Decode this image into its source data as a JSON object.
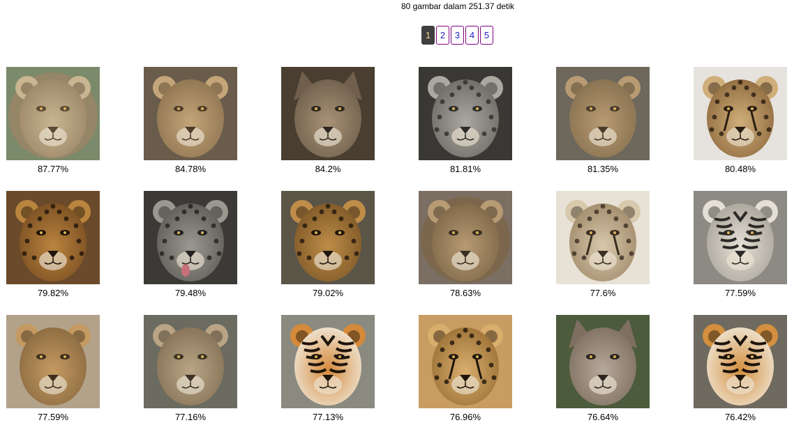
{
  "summary": {
    "text": "80 gambar dalam 251.37 detik"
  },
  "pagination": {
    "pages": [
      "1",
      "2",
      "3",
      "4",
      "5"
    ],
    "current": "1"
  },
  "results": [
    {
      "score": "87.77%",
      "icon": "lion-image",
      "palette": [
        "#c9b591",
        "#9a8566",
        "#5a4a36",
        "#7b8a6a"
      ]
    },
    {
      "score": "84.78%",
      "icon": "lioness-image",
      "palette": [
        "#c4a579",
        "#8e7451",
        "#4d3c29",
        "#6a5c4b"
      ]
    },
    {
      "score": "84.2%",
      "icon": "wolf-image",
      "palette": [
        "#a79276",
        "#6f5f4c",
        "#2f2820",
        "#4a3e30"
      ]
    },
    {
      "score": "81.81%",
      "icon": "snow-leopard-image",
      "palette": [
        "#aaa8a0",
        "#6c6a63",
        "#2e2d2a",
        "#3a3834"
      ]
    },
    {
      "score": "81.35%",
      "icon": "lioness-image",
      "palette": [
        "#b89b73",
        "#86704f",
        "#4a3c2b",
        "#6d675c"
      ]
    },
    {
      "score": "80.48%",
      "icon": "cheetah-image",
      "palette": [
        "#cfae7a",
        "#8f6a3e",
        "#2b1e12",
        "#e6e3de"
      ]
    },
    {
      "score": "79.82%",
      "icon": "jaguar-image",
      "palette": [
        "#b9843e",
        "#7a4e22",
        "#1e140a",
        "#6a4a2a"
      ]
    },
    {
      "score": "79.48%",
      "icon": "snow-leopard-image",
      "palette": [
        "#9a9890",
        "#5e5c56",
        "#222120",
        "#3b3a37"
      ]
    },
    {
      "score": "79.02%",
      "icon": "leopard-image",
      "palette": [
        "#bf8d48",
        "#7c5726",
        "#21160b",
        "#5b5548"
      ]
    },
    {
      "score": "78.63%",
      "icon": "lion-image",
      "palette": [
        "#b79b73",
        "#7d6648",
        "#3b2f22",
        "#7b6f63"
      ]
    },
    {
      "score": "77.6%",
      "icon": "cheetah-cub-image",
      "palette": [
        "#d8c8ac",
        "#a08a6a",
        "#3a2e22",
        "#e8e2d6"
      ]
    },
    {
      "score": "77.59%",
      "icon": "white-tiger-image",
      "palette": [
        "#e4e0d6",
        "#a9a49a",
        "#2c2a26",
        "#8c8a82"
      ]
    },
    {
      "score": "77.59%",
      "icon": "lioness-image",
      "palette": [
        "#c49a62",
        "#8b6a40",
        "#3e2e1c",
        "#b2a28a"
      ]
    },
    {
      "score": "77.16%",
      "icon": "lion-cub-image",
      "palette": [
        "#b9a585",
        "#857257",
        "#3d3327",
        "#6b6b60"
      ]
    },
    {
      "score": "77.13%",
      "icon": "tiger-image",
      "palette": [
        "#d58a3a",
        "#f0e8da",
        "#1d140c",
        "#8a8a80"
      ]
    },
    {
      "score": "76.96%",
      "icon": "cheetah-image",
      "palette": [
        "#d9ad6c",
        "#9b7036",
        "#1e150b",
        "#c89c62"
      ]
    },
    {
      "score": "76.64%",
      "icon": "wolf-image",
      "palette": [
        "#b6a89a",
        "#7e6f60",
        "#2d2620",
        "#4b5b3b"
      ]
    },
    {
      "score": "76.42%",
      "icon": "tiger-image",
      "palette": [
        "#d4903f",
        "#efe6d6",
        "#1c130b",
        "#6f6a5f"
      ]
    }
  ]
}
